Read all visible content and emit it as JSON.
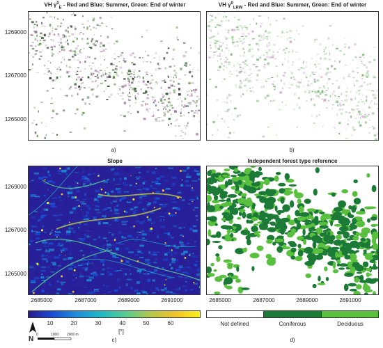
{
  "panels": [
    {
      "id": "a",
      "title_prefix": "VH ",
      "title_sym": "γ",
      "title_sup": "0",
      "title_sub": "E",
      "title_rest": " - Red and Blue: Summer, Green: End of winter",
      "caption": "a)"
    },
    {
      "id": "b",
      "title_prefix": "VH ",
      "title_sym": "γ",
      "title_sup": "0",
      "title_sub": "LRW",
      "title_rest": " - Red and Blue: Summer, Green: End of winter",
      "caption": "b)"
    },
    {
      "id": "c",
      "title": "Slope",
      "caption": "c)"
    },
    {
      "id": "d",
      "title": "Independent forest type reference",
      "caption": "d)"
    }
  ],
  "y_ticks": [
    "1269000",
    "1267000",
    "1265000"
  ],
  "x_ticks": [
    "2685000",
    "2687000",
    "2689000",
    "2691000"
  ],
  "colorbar": {
    "ticks": [
      "10",
      "20",
      "30",
      "40",
      "50",
      "60"
    ],
    "unit": "[°]",
    "colors": [
      "#2b1a8e",
      "#1a4fd6",
      "#1f8fd8",
      "#21b9c3",
      "#58cc8f",
      "#b4c84a",
      "#f2c12b",
      "#f9f21a"
    ]
  },
  "legend": {
    "items": [
      {
        "label": "Not defined",
        "color": "#ffffff"
      },
      {
        "label": "Coniferous",
        "color": "#1b7a35"
      },
      {
        "label": "Deciduous",
        "color": "#59bf3e"
      }
    ]
  },
  "scalebar": {
    "north": "N",
    "labels": [
      "0",
      "1000",
      "2000 m"
    ]
  }
}
